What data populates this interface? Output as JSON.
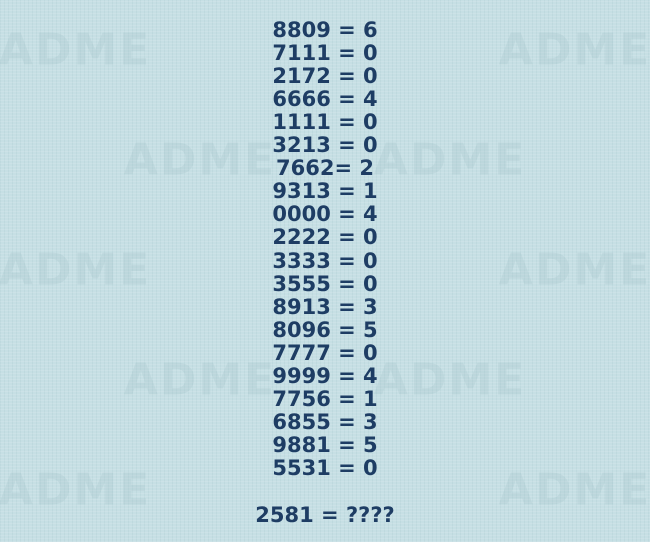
{
  "lines": [
    "8809 = 6",
    "7111 = 0",
    "2172 = 0",
    "6666 = 4",
    "1111 = 0",
    "3213 = 0",
    "7662= 2",
    "9313 = 1",
    "0000 = 4",
    "2222 = 0",
    "3333 = 0",
    "3555 = 0",
    "8913 = 3",
    "8096 = 5",
    "7777 = 0",
    "9999 = 4",
    "7756 = 1",
    "6855 = 3",
    "9881 = 5",
    "5531 = 0"
  ],
  "question": "2581 = ????",
  "watermark": "ADME"
}
